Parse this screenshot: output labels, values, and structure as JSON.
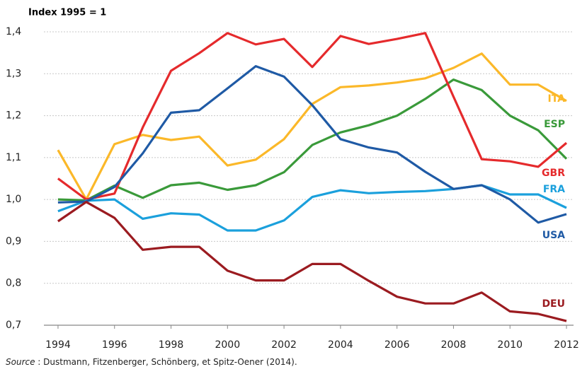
{
  "chart_data": {
    "type": "line",
    "title": "Index 1995 = 1",
    "note": {
      "label": "Source",
      "text": " : Dustmann, Fitzenberger, Schönberg, et Spitz-Oener (2014)."
    },
    "x": [
      1994,
      1995,
      1996,
      1997,
      1998,
      1999,
      2000,
      2001,
      2002,
      2003,
      2004,
      2005,
      2006,
      2007,
      2008,
      2009,
      2010,
      2011,
      2012
    ],
    "xlim": [
      1993.5,
      2012.25
    ],
    "xticks": [
      1994,
      1996,
      1998,
      2000,
      2002,
      2004,
      2006,
      2008,
      2010,
      2012
    ],
    "ylim": [
      0.7,
      1.4
    ],
    "yticks": [
      {
        "value": 0.7,
        "label": "0,7"
      },
      {
        "value": 0.8,
        "label": "0,8"
      },
      {
        "value": 0.9,
        "label": "0,9"
      },
      {
        "value": 1.0,
        "label": "1,0"
      },
      {
        "value": 1.1,
        "label": "1,1"
      },
      {
        "value": 1.2,
        "label": "1,2"
      },
      {
        "value": 1.3,
        "label": "1,3"
      },
      {
        "value": 1.4,
        "label": "1,4"
      }
    ],
    "grid": true,
    "series": [
      {
        "name": "ITA",
        "color": "#fbb829",
        "values": [
          1.118,
          1.0,
          1.132,
          1.154,
          1.142,
          1.15,
          1.081,
          1.095,
          1.144,
          1.228,
          1.268,
          1.272,
          1.279,
          1.289,
          1.314,
          1.348,
          1.274,
          1.274,
          1.235
        ]
      },
      {
        "name": "ESP",
        "color": "#3a9a3a",
        "values": [
          1.0,
          0.998,
          1.033,
          1.004,
          1.034,
          1.04,
          1.023,
          1.034,
          1.065,
          1.13,
          1.16,
          1.177,
          1.2,
          1.24,
          1.286,
          1.261,
          1.2,
          1.165,
          1.097
        ]
      },
      {
        "name": "GBR",
        "color": "#e52a2c",
        "values": [
          1.05,
          1.0,
          1.014,
          1.172,
          1.307,
          1.349,
          1.397,
          1.37,
          1.383,
          1.316,
          1.39,
          1.371,
          1.383,
          1.397,
          1.245,
          1.096,
          1.091,
          1.078,
          1.135
        ]
      },
      {
        "name": "FRA",
        "color": "#1ba0dc",
        "values": [
          0.972,
          0.997,
          1.0,
          0.954,
          0.967,
          0.964,
          0.926,
          0.926,
          0.95,
          1.006,
          1.022,
          1.015,
          1.018,
          1.02,
          1.025,
          1.034,
          1.012,
          1.012,
          0.98
        ]
      },
      {
        "name": "USA",
        "color": "#1f5aa5",
        "values": [
          0.993,
          0.995,
          1.03,
          1.11,
          1.207,
          1.213,
          1.265,
          1.318,
          1.293,
          1.225,
          1.144,
          1.124,
          1.112,
          1.066,
          1.025,
          1.034,
          1.0,
          0.945,
          0.965
        ]
      },
      {
        "name": "DEU",
        "color": "#9b1b20",
        "values": [
          0.948,
          0.994,
          0.956,
          0.88,
          0.887,
          0.887,
          0.83,
          0.807,
          0.807,
          0.846,
          0.846,
          0.806,
          0.768,
          0.752,
          0.752,
          0.778,
          0.733,
          0.727,
          0.71
        ]
      }
    ]
  }
}
